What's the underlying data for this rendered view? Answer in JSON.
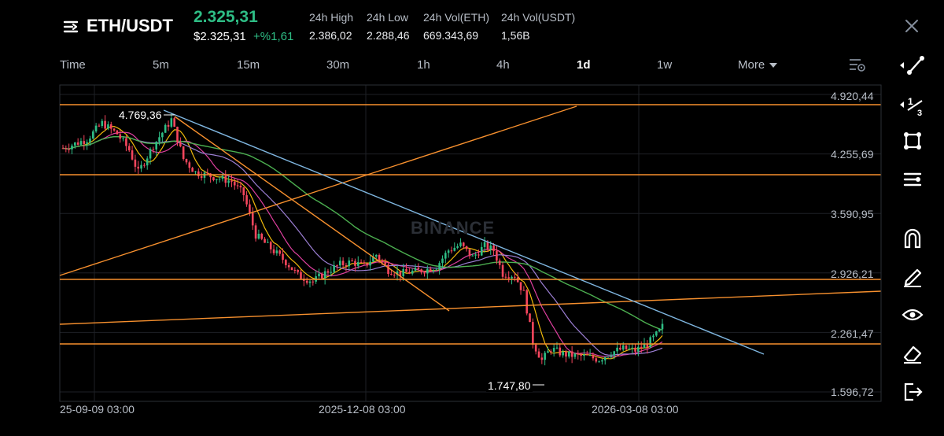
{
  "header": {
    "pair": "ETH/USDT",
    "last_price": "2.325,31",
    "usd_price": "$2.325,31",
    "change": "+%1,61",
    "stats": [
      {
        "label": "24h High",
        "value": "2.386,02"
      },
      {
        "label": "24h Low",
        "value": "2.288,46"
      },
      {
        "label": "24h Vol(ETH)",
        "value": "669.343,69"
      },
      {
        "label": "24h Vol(USDT)",
        "value": "1,56B"
      }
    ]
  },
  "intervals": [
    "Time",
    "5m",
    "15m",
    "30m",
    "1h",
    "4h",
    "1d",
    "1w",
    "More"
  ],
  "active_interval": "1d",
  "chart": {
    "watermark": "BINANCE",
    "price_ticks": [
      "4.920,44",
      "4.255,69",
      "3.590,95",
      "2.926,21",
      "2.261,47",
      "1.596,72"
    ],
    "date_ticks": [
      "25-09-09 03:00",
      "2025-12-08 03:00",
      "2026-03-08 03:00"
    ],
    "annotations": {
      "high": "4.769,36",
      "low": "1.747,80"
    }
  },
  "chart_data": {
    "type": "candlestick",
    "symbol": "ETH/USDT",
    "interval": "1d",
    "y_ticks": [
      4920.44,
      4255.69,
      3590.95,
      2926.21,
      2261.47,
      1596.72
    ],
    "ylim": [
      1596.72,
      4920.44
    ],
    "x_ticks": [
      "25-09-09 03:00",
      "2025-12-08 03:00",
      "2026-03-08 03:00"
    ],
    "annotations": [
      {
        "label": "4.769,36",
        "value": 4769.36
      },
      {
        "label": "1.747,80",
        "value": 1747.8
      }
    ],
    "candle_up_color": "#2ebd85",
    "candle_down_color": "#f6465d",
    "ma_colors": [
      "#f0b90b",
      "#e040a0",
      "#9c7fd4",
      "#4caf50"
    ],
    "drawing_colors": {
      "horizontal": "#f7902e",
      "trend": "#f7902e",
      "resistance": "#7fb6e0"
    }
  },
  "tools": [
    "trend-line-tool",
    "fibonacci-tool",
    "shape-tool",
    "text-tool",
    "magnet-tool",
    "draw-pencil-tool",
    "visibility-tool",
    "eraser-tool",
    "exit-tool"
  ]
}
